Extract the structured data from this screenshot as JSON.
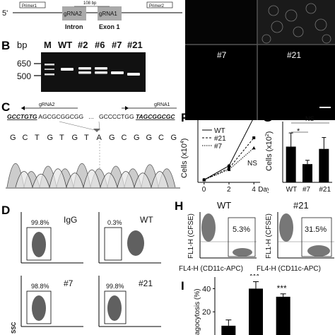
{
  "panel_a": {
    "prime5": "5'",
    "primer1": "Primer1",
    "grna2": "gRNA2",
    "grna1": "gRNA1",
    "primer2": "Primer2",
    "bp108": "108 bp",
    "intron": "Intron",
    "exon1": "Exon 1"
  },
  "panel_b": {
    "letter": "B",
    "bp": "bp",
    "lanes": [
      "M",
      "WT",
      "#2",
      "#6",
      "#7",
      "#21"
    ],
    "size650": "650",
    "size500": "500"
  },
  "panel_c": {
    "letter": "C",
    "grna2": "gRNA2",
    "grna1": "gRNA1",
    "seq_left_bold": "GCCTGTG",
    "seq_left_rest": "AGCGCGGCGG",
    "seq_right_rest": "GCCCCTGG",
    "seq_right_bold": "TAGCGGCGC",
    "read_bases": [
      "G",
      "C",
      "T",
      "G",
      "T",
      "G",
      "T",
      "A",
      "G",
      "C",
      "G",
      "G",
      "C",
      "G"
    ]
  },
  "panel_micro": {
    "label_7": "#7",
    "label_21": "#21"
  },
  "panel_f": {
    "letter": "F",
    "ylabel": "Cells (x10",
    "ylabel_exp": "4",
    "ylabel_end": ")",
    "ns": "NS",
    "days": "Days",
    "legend": [
      "WT",
      "#21",
      "#7"
    ]
  },
  "panel_g": {
    "letter": "G",
    "ylabel": "Cells (x10",
    "ylabel_exp": "2",
    "ylabel_end": ")",
    "ns": "NS",
    "star": "*"
  },
  "panel_d": {
    "letter": "D",
    "plots": [
      {
        "label": "IgG",
        "pct": "99.8%"
      },
      {
        "label": "WT",
        "pct": "0.3%"
      },
      {
        "label": "#7",
        "pct": "98.8%"
      },
      {
        "label": "#21",
        "pct": "99.8%"
      }
    ],
    "ssc": "SSC"
  },
  "panel_h": {
    "letter": "H",
    "plots": [
      {
        "label": "WT",
        "pct": "5.3%"
      },
      {
        "label": "#21",
        "pct": "31.5%"
      }
    ],
    "ylabel": "FL1-H (CFSE)",
    "xlabel": "FL4-H (CD11c-APC)"
  },
  "panel_i": {
    "letter": "I",
    "ylabel": "agocytosis (%)",
    "sig": [
      "***",
      "***"
    ]
  },
  "chart_data": [
    {
      "type": "line",
      "xlabel": "Days",
      "ylabel": "Cells (x10^4)",
      "x": [
        0,
        2,
        4
      ],
      "xlim": [
        -0.5,
        4.5
      ],
      "ylim": [
        0,
        50
      ],
      "yticks": [
        0,
        10,
        20,
        30,
        40,
        50
      ],
      "xticks": [
        0,
        2,
        4
      ],
      "series": [
        {
          "name": "WT",
          "values": [
            2,
            13,
            51
          ]
        },
        {
          "name": "#21",
          "values": [
            2,
            11,
            35
          ]
        },
        {
          "name": "#7",
          "values": [
            2,
            10,
            27
          ]
        }
      ],
      "annotation": "NS"
    },
    {
      "type": "bar",
      "ylabel": "Cells (x10^2)",
      "categories": [
        "WT",
        "#7",
        "#21"
      ],
      "values": [
        2.35,
        1.2,
        2.2
      ],
      "errors": [
        0.9,
        0.25,
        0.75
      ],
      "ylim": [
        0,
        4
      ],
      "yticks": [
        0,
        1,
        2,
        3,
        4
      ]
    },
    {
      "type": "bar",
      "ylabel": "Phagocytosis (%)",
      "categories": [
        "",
        "",
        ""
      ],
      "values": [
        8,
        40,
        33
      ],
      "errors": [
        5,
        6,
        2.5
      ],
      "ylim": [
        0,
        50
      ],
      "yticks": [
        20,
        40
      ]
    }
  ]
}
